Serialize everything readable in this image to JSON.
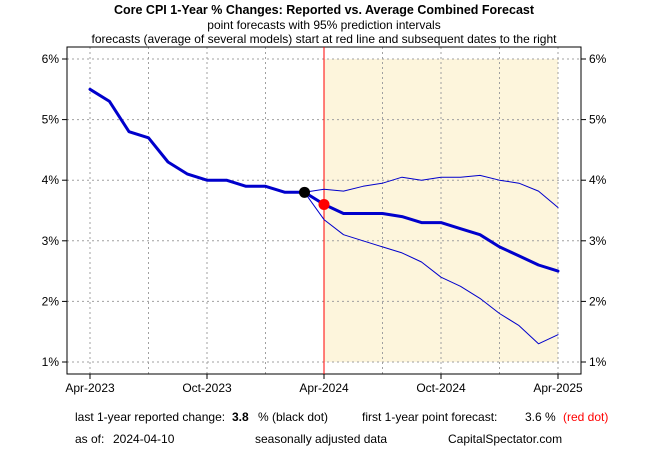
{
  "chart_data": {
    "type": "line",
    "title": "Core CPI 1-Year % Changes: Reported vs. Average Combined Forecast",
    "subtitle_1": "point forecasts with 95% prediction intervals",
    "subtitle_2": "forecasts (average of several models) start at red line and subsequent dates to the right",
    "x_range": [
      "2023-04",
      "2025-04"
    ],
    "ylim": [
      1,
      6
    ],
    "y_ticks": [
      6,
      5,
      4,
      3,
      2,
      1
    ],
    "y_tick_labels": [
      "6%",
      "5%",
      "4%",
      "3%",
      "2%",
      "1%"
    ],
    "x_tick_labels": [
      "Apr-2023",
      "Oct-2023",
      "Apr-2024",
      "Oct-2024",
      "Apr-2025"
    ],
    "forecast_start": "2024-04",
    "grid": true,
    "series": [
      {
        "role": "reported",
        "x": [
          "2023-04",
          "2023-05",
          "2023-06",
          "2023-07",
          "2023-08",
          "2023-09",
          "2023-10",
          "2023-11",
          "2023-12",
          "2024-01",
          "2024-02",
          "2024-03"
        ],
        "values": [
          5.5,
          5.3,
          4.8,
          4.7,
          4.3,
          4.1,
          4.0,
          4.0,
          3.9,
          3.9,
          3.8,
          3.8
        ]
      },
      {
        "role": "forecast",
        "x": [
          "2024-03",
          "2024-04",
          "2024-05",
          "2024-06",
          "2024-07",
          "2024-08",
          "2024-09",
          "2024-10",
          "2024-11",
          "2024-12",
          "2025-01",
          "2025-02",
          "2025-03",
          "2025-04"
        ],
        "values": [
          3.8,
          3.6,
          3.45,
          3.45,
          3.45,
          3.4,
          3.3,
          3.3,
          3.2,
          3.1,
          2.9,
          2.75,
          2.6,
          2.5
        ]
      },
      {
        "role": "upper_95",
        "x": [
          "2024-03",
          "2024-04",
          "2024-05",
          "2024-06",
          "2024-07",
          "2024-08",
          "2024-09",
          "2024-10",
          "2024-11",
          "2024-12",
          "2025-01",
          "2025-02",
          "2025-03",
          "2025-04"
        ],
        "values": [
          3.8,
          3.85,
          3.82,
          3.9,
          3.95,
          4.05,
          4.0,
          4.05,
          4.05,
          4.08,
          4.0,
          3.95,
          3.82,
          3.55
        ]
      },
      {
        "role": "lower_95",
        "x": [
          "2024-03",
          "2024-04",
          "2024-05",
          "2024-06",
          "2024-07",
          "2024-08",
          "2024-09",
          "2024-10",
          "2024-11",
          "2024-12",
          "2025-01",
          "2025-02",
          "2025-03",
          "2025-04"
        ],
        "values": [
          3.8,
          3.35,
          3.1,
          3.0,
          2.9,
          2.8,
          2.65,
          2.4,
          2.25,
          2.05,
          1.8,
          1.6,
          1.3,
          1.45
        ]
      }
    ],
    "markers": [
      {
        "label": "black dot",
        "x": "2024-03",
        "value": 3.8,
        "color": "#000000"
      },
      {
        "label": "red dot",
        "x": "2024-04",
        "value": 3.6,
        "color": "#ff0000"
      }
    ],
    "colors": {
      "line": "#0000cc",
      "forecast_band": "#fdf5dc",
      "forecast_start_line": "#ff0000",
      "grid": "#a0a0a0"
    }
  },
  "footer": {
    "reported_label": "last 1-year reported change:",
    "reported_value": "3.8",
    "reported_suffix": "% (black dot)",
    "forecast_label": "first 1-year point forecast:",
    "forecast_value": "3.6 %",
    "forecast_suffix": "(red dot)",
    "asof_label": "as of:",
    "asof_value": "2024-04-10",
    "seasonal_note": "seasonally adjusted data",
    "source": "CapitalSpectator.com"
  }
}
